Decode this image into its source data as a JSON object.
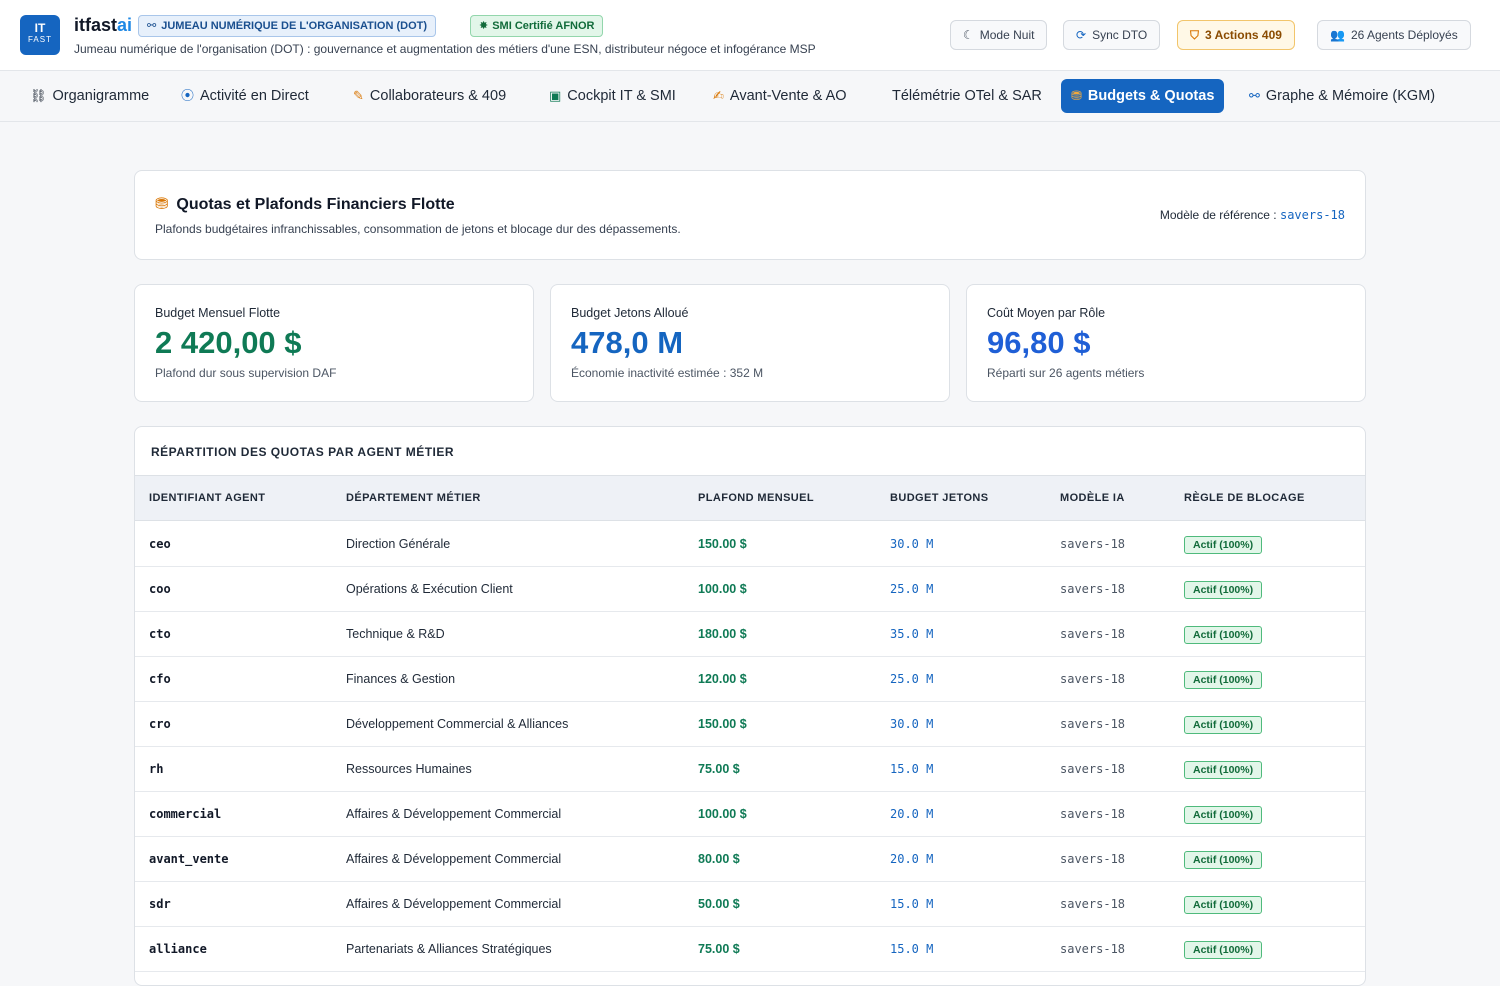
{
  "header": {
    "logo_top": "IT",
    "logo_bottom": "FAST",
    "brand_main": "itfast",
    "brand_accent": "ai",
    "chip_dot": "JUMEAU NUMÉRIQUE DE L'ORGANISATION (DOT)",
    "chip_smi": "SMI Certifié AFNOR",
    "subtitle": "Jumeau numérique de l'organisation (DOT) : gouvernance et augmentation des métiers d'une ESN, distributeur négoce et infogérance MSP",
    "buttons": {
      "night": "Mode Nuit",
      "sync": "Sync DTO",
      "actions": "3 Actions 409",
      "agents": "26 Agents Déployés"
    }
  },
  "nav": {
    "tabs": [
      "Organigramme",
      "Activité en Direct",
      "Collaborateurs & 409",
      "Cockpit IT & SMI",
      "Avant-Vente & AO",
      "Télémétrie OTel & SAR",
      "Budgets & Quotas",
      "Graphe & Mémoire (KGM)"
    ],
    "active": "Budgets & Quotas"
  },
  "overview": {
    "title": "Quotas et Plafonds Financiers Flotte",
    "description": "Plafonds budgétaires infranchissables, consommation de jetons et blocage dur des dépassements.",
    "ref_label": "Modèle de référence :",
    "ref_value": "savers-18"
  },
  "stats": [
    {
      "label": "Budget Mensuel Flotte",
      "value": "2 420,00 $",
      "note": "Plafond dur sous supervision DAF"
    },
    {
      "label": "Budget Jetons Alloué",
      "value": "478,0 M",
      "note": "Économie inactivité estimée : 352 M"
    },
    {
      "label": "Coût Moyen par Rôle",
      "value": "96,80 $",
      "note": "Réparti sur 26 agents métiers"
    }
  ],
  "table": {
    "title": "RÉPARTITION DES QUOTAS PAR AGENT MÉTIER",
    "columns": [
      "IDENTIFIANT AGENT",
      "DÉPARTEMENT MÉTIER",
      "PLAFOND MENSUEL",
      "BUDGET JETONS",
      "MODÈLE IA",
      "RÈGLE DE BLOCAGE"
    ],
    "rows": [
      {
        "id": "ceo",
        "dept": "Direction Générale",
        "cap": "150.00 $",
        "tokens": "30.0 M",
        "model": "savers-18",
        "rule": "Actif (100%)"
      },
      {
        "id": "coo",
        "dept": "Opérations & Exécution Client",
        "cap": "100.00 $",
        "tokens": "25.0 M",
        "model": "savers-18",
        "rule": "Actif (100%)"
      },
      {
        "id": "cto",
        "dept": "Technique & R&D",
        "cap": "180.00 $",
        "tokens": "35.0 M",
        "model": "savers-18",
        "rule": "Actif (100%)"
      },
      {
        "id": "cfo",
        "dept": "Finances & Gestion",
        "cap": "120.00 $",
        "tokens": "25.0 M",
        "model": "savers-18",
        "rule": "Actif (100%)"
      },
      {
        "id": "cro",
        "dept": "Développement Commercial & Alliances",
        "cap": "150.00 $",
        "tokens": "30.0 M",
        "model": "savers-18",
        "rule": "Actif (100%)"
      },
      {
        "id": "rh",
        "dept": "Ressources Humaines",
        "cap": "75.00 $",
        "tokens": "15.0 M",
        "model": "savers-18",
        "rule": "Actif (100%)"
      },
      {
        "id": "commercial",
        "dept": "Affaires & Développement Commercial",
        "cap": "100.00 $",
        "tokens": "20.0 M",
        "model": "savers-18",
        "rule": "Actif (100%)"
      },
      {
        "id": "avant_vente",
        "dept": "Affaires & Développement Commercial",
        "cap": "80.00 $",
        "tokens": "20.0 M",
        "model": "savers-18",
        "rule": "Actif (100%)"
      },
      {
        "id": "sdr",
        "dept": "Affaires & Développement Commercial",
        "cap": "50.00 $",
        "tokens": "15.0 M",
        "model": "savers-18",
        "rule": "Actif (100%)"
      },
      {
        "id": "alliance",
        "dept": "Partenariats & Alliances Stratégiques",
        "cap": "75.00 $",
        "tokens": "15.0 M",
        "model": "savers-18",
        "rule": "Actif (100%)"
      }
    ]
  },
  "colors": {
    "primary": "#1565c0",
    "money_green": "#0f7a55",
    "warn_amber": "#d97706"
  }
}
